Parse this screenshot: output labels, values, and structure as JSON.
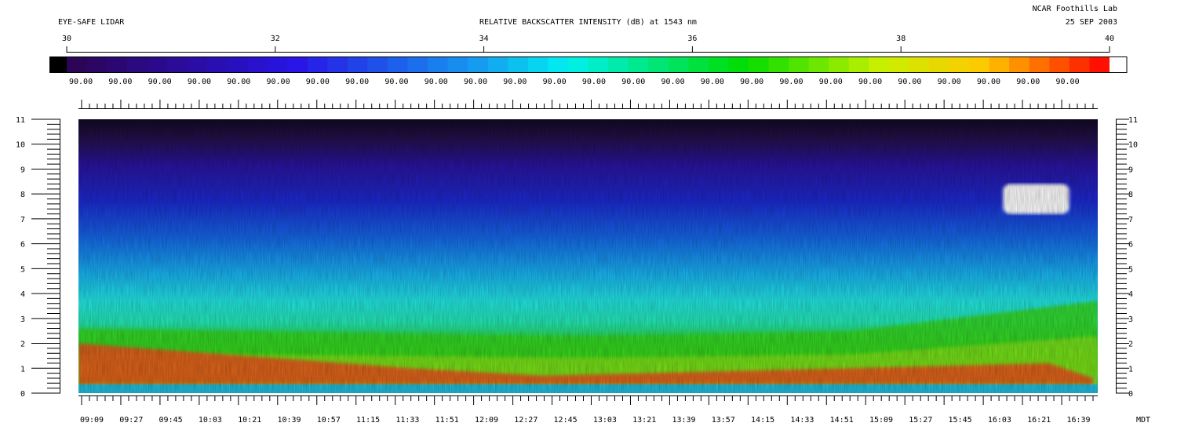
{
  "header": {
    "left_label": "EYE-SAFE LIDAR",
    "center_title": "RELATIVE BACKSCATTER INTENSITY (dB) at 1543 nm",
    "right_line1": "NCAR Foothills Lab",
    "right_line2": "25 SEP 2003"
  },
  "chart_data": {
    "type": "heatmap",
    "title": "RELATIVE BACKSCATTER INTENSITY (dB) at 1543 nm",
    "colorbar": {
      "range": [
        30,
        40
      ],
      "ticks": [
        30,
        32,
        34,
        36,
        38,
        40
      ],
      "bin_labels": [
        "90.00",
        "90.00",
        "90.00",
        "90.00",
        "90.00",
        "90.00",
        "90.00",
        "90.00",
        "90.00",
        "90.00",
        "90.00",
        "90.00",
        "90.00",
        "90.00",
        "90.00",
        "90.00",
        "90.00",
        "90.00",
        "90.00",
        "90.00",
        "90.00",
        "90.00",
        "90.00",
        "90.00",
        "90.00",
        "90.00"
      ],
      "under_color": "#000000",
      "over_color": "#ffffff"
    },
    "x": {
      "tick_labels": [
        "09:09",
        "09:27",
        "09:45",
        "10:03",
        "10:21",
        "10:39",
        "10:57",
        "11:15",
        "11:33",
        "11:51",
        "12:09",
        "12:27",
        "12:45",
        "13:03",
        "13:21",
        "13:39",
        "13:57",
        "14:15",
        "14:33",
        "14:51",
        "15:09",
        "15:27",
        "15:45",
        "16:03",
        "16:21",
        "16:39"
      ],
      "unit": "MDT",
      "range_minutes": [
        549,
        1012
      ]
    },
    "y": {
      "ticks": [
        0,
        1,
        2,
        3,
        4,
        5,
        6,
        7,
        8,
        9,
        10,
        11
      ],
      "range": [
        0,
        11
      ]
    },
    "features": {
      "boundary_layer_top_km": [
        [
          549,
          2.6
        ],
        [
          780,
          2.3
        ],
        [
          900,
          2.5
        ],
        [
          1012,
          3.7
        ]
      ],
      "residual_layer_km": [
        [
          549,
          2.0
        ],
        [
          700,
          1.0
        ],
        [
          760,
          0.7
        ],
        [
          990,
          1.2
        ],
        [
          1010,
          0.6
        ]
      ],
      "cloud": {
        "t_start": 969,
        "t_end": 999,
        "base_km": 7.2,
        "top_km": 8.4
      }
    }
  }
}
